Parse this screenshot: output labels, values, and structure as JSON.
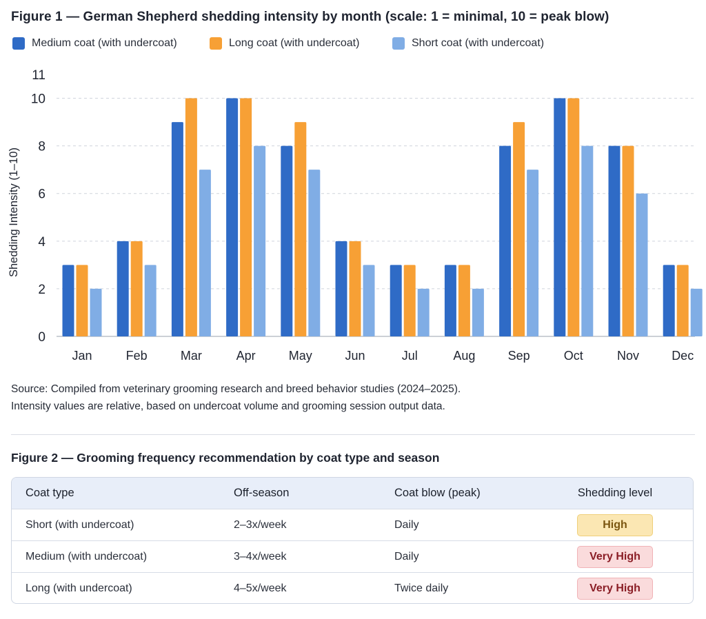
{
  "figure1": {
    "title": "Figure 1 — German Shepherd shedding intensity by month (scale: 1 = minimal, 10 = peak blow)",
    "source_line1": "Source: Compiled from veterinary grooming research and breed behavior studies (2024–2025).",
    "source_line2": "Intensity values are relative, based on undercoat volume and grooming session output data."
  },
  "chart_data": {
    "type": "bar",
    "title": "Figure 1 — German Shepherd shedding intensity by month (scale: 1 = minimal, 10 = peak blow)",
    "xlabel": "",
    "ylabel": "Shedding Intensity (1–10)",
    "ylim": [
      0,
      11
    ],
    "yticks": [
      0,
      2,
      4,
      6,
      8,
      10,
      11
    ],
    "grid": true,
    "legend": "top-left",
    "categories": [
      "Jan",
      "Feb",
      "Mar",
      "Apr",
      "May",
      "Jun",
      "Jul",
      "Aug",
      "Sep",
      "Oct",
      "Nov",
      "Dec"
    ],
    "series": [
      {
        "name": "Medium coat (with undercoat)",
        "color": "#2f6bc6",
        "values": [
          3,
          4,
          9,
          10,
          8,
          4,
          3,
          3,
          8,
          10,
          8,
          3
        ]
      },
      {
        "name": "Long coat (with undercoat)",
        "color": "#f7a035",
        "values": [
          3,
          4,
          10,
          10,
          9,
          4,
          3,
          3,
          9,
          10,
          8,
          3
        ]
      },
      {
        "name": "Short coat (with undercoat)",
        "color": "#80ade5",
        "values": [
          2,
          3,
          7,
          8,
          7,
          3,
          2,
          2,
          7,
          8,
          6,
          2
        ]
      }
    ]
  },
  "figure2": {
    "title": "Figure 2 — Grooming frequency recommendation by coat type and season",
    "headers": [
      "Coat type",
      "Off-season",
      "Coat blow (peak)",
      "Shedding level"
    ],
    "rows": [
      {
        "coat": "Short (with undercoat)",
        "off": "2–3x/week",
        "peak": "Daily",
        "level": "High"
      },
      {
        "coat": "Medium (with undercoat)",
        "off": "3–4x/week",
        "peak": "Daily",
        "level": "Very High"
      },
      {
        "coat": "Long (with undercoat)",
        "off": "4–5x/week",
        "peak": "Twice daily",
        "level": "Very High"
      }
    ]
  }
}
